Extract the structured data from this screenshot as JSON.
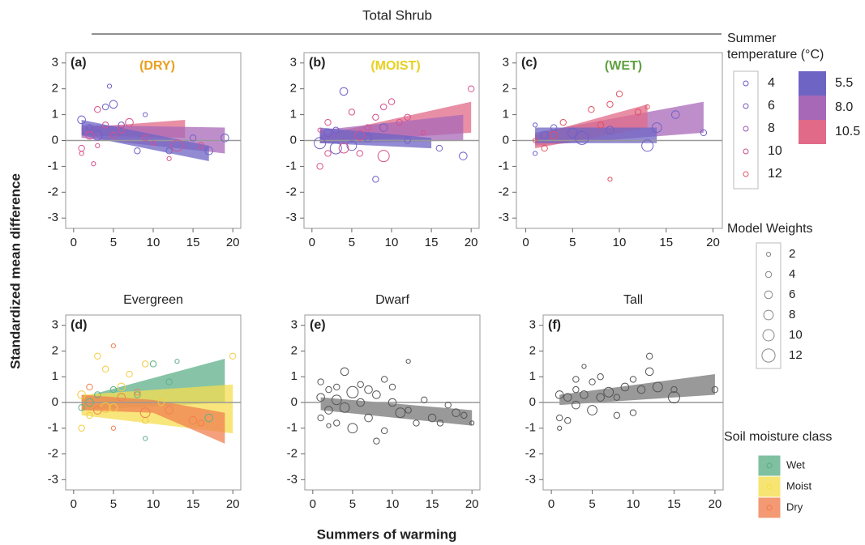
{
  "figure": {
    "title": "Total Shrub",
    "xlabel": "Summers of warming",
    "ylabel": "Standardized mean difference"
  },
  "legends": {
    "temperature": {
      "title": "Summer temperature (°C)",
      "points": [
        {
          "label": "4",
          "color": "#6a5acd"
        },
        {
          "label": "6",
          "color": "#7d58c2"
        },
        {
          "label": "8",
          "color": "#a055b5"
        },
        {
          "label": "10",
          "color": "#c9508d"
        },
        {
          "label": "12",
          "color": "#e05560"
        }
      ],
      "bands": [
        {
          "label": "5.5",
          "color": "#6e64c4"
        },
        {
          "label": "8.0",
          "color": "#a868b8"
        },
        {
          "label": "10.5",
          "color": "#e06a88"
        }
      ]
    },
    "weights": {
      "title": "Model Weights",
      "sizes": [
        2,
        4,
        6,
        8,
        10,
        12
      ],
      "color": "#888"
    },
    "soil": {
      "title": "Soil moisture class",
      "items": [
        {
          "label": "Wet",
          "color": "#5fb08a"
        },
        {
          "label": "Moist",
          "color": "#f5de50"
        },
        {
          "label": "Dry",
          "color": "#f08050"
        }
      ]
    }
  },
  "chart_data": [
    {
      "type": "scatter",
      "panel_label": "(a)",
      "title": "(DRY)",
      "title_color": "#e8a020",
      "xlim": [
        -1,
        21
      ],
      "ylim": [
        -3.4,
        3.4
      ],
      "xticks": [
        0,
        5,
        10,
        15,
        20
      ],
      "yticks": [
        -3,
        -2,
        -1,
        0,
        1,
        2,
        3
      ],
      "reference_line": 0,
      "bands": [
        {
          "color": "#e06a88",
          "x": [
            1,
            14
          ],
          "lower": [
            0.2,
            0.1
          ],
          "upper": [
            0.5,
            0.8
          ]
        },
        {
          "color": "#a868b8",
          "x": [
            1,
            19
          ],
          "lower": [
            0.1,
            -0.5
          ],
          "upper": [
            0.6,
            0.5
          ]
        },
        {
          "color": "#6e64c4",
          "x": [
            1,
            17
          ],
          "lower": [
            0.2,
            -0.8
          ],
          "upper": [
            0.8,
            -0.2
          ]
        }
      ],
      "series": [
        {
          "color": "#7060c8",
          "x": [
            1,
            2,
            4,
            4.5,
            5,
            6,
            8,
            9,
            12,
            17,
            19,
            15,
            3
          ],
          "y": [
            0.8,
            0.5,
            1.3,
            2.1,
            1.4,
            0.6,
            -0.4,
            1.0,
            -0.4,
            -0.4,
            0.1,
            0.1,
            0.2
          ],
          "size": [
            6,
            4,
            4,
            2,
            6,
            4,
            4,
            2,
            4,
            6,
            6,
            4,
            8
          ]
        },
        {
          "color": "#d8508c",
          "x": [
            1,
            1,
            2,
            3,
            3,
            4,
            5,
            6,
            7,
            9,
            10,
            12,
            13,
            16,
            2.5
          ],
          "y": [
            -0.3,
            -0.5,
            0.2,
            1.2,
            -0.2,
            0.6,
            0.2,
            0.4,
            0.7,
            0.1,
            -0.1,
            -0.7,
            -0.2,
            -0.2,
            -0.9
          ],
          "size": [
            4,
            2,
            6,
            4,
            2,
            4,
            4,
            4,
            6,
            4,
            2,
            2,
            10,
            4,
            2
          ]
        }
      ]
    },
    {
      "type": "scatter",
      "panel_label": "(b)",
      "title": "(MOIST)",
      "title_color": "#e8d020",
      "xlim": [
        -1,
        21
      ],
      "ylim": [
        -3.4,
        3.4
      ],
      "xticks": [
        0,
        5,
        10,
        15,
        20
      ],
      "yticks": [
        -3,
        -2,
        -1,
        0,
        1,
        2,
        3
      ],
      "reference_line": 0,
      "bands": [
        {
          "color": "#e06a88",
          "x": [
            1,
            20
          ],
          "lower": [
            -0.1,
            0.3
          ],
          "upper": [
            0.2,
            1.5
          ]
        },
        {
          "color": "#a868b8",
          "x": [
            1,
            19
          ],
          "lower": [
            -0.1,
            0.0
          ],
          "upper": [
            0.4,
            1.0
          ]
        },
        {
          "color": "#6e64c4",
          "x": [
            1,
            15
          ],
          "lower": [
            -0.1,
            -0.3
          ],
          "upper": [
            0.5,
            0.1
          ]
        }
      ],
      "series": [
        {
          "color": "#7060c8",
          "x": [
            1,
            2,
            3,
            4,
            5,
            8,
            9,
            12,
            16,
            19,
            7,
            3
          ],
          "y": [
            -0.1,
            0.3,
            0.4,
            1.9,
            -0.2,
            -1.5,
            0.5,
            0.0,
            -0.3,
            -0.6,
            0.1,
            -0.3
          ],
          "size": [
            10,
            6,
            4,
            6,
            8,
            4,
            6,
            4,
            4,
            6,
            6,
            10
          ]
        },
        {
          "color": "#d8508c",
          "x": [
            1,
            1,
            2,
            2,
            4,
            5,
            6,
            7,
            8,
            9,
            9,
            10,
            12,
            14,
            20,
            6,
            11
          ],
          "y": [
            -1.0,
            0.4,
            -0.5,
            0.7,
            -0.3,
            1.1,
            0.2,
            0.5,
            0.9,
            -0.6,
            1.3,
            1.5,
            0.9,
            0.3,
            2.0,
            -0.5,
            0.7
          ],
          "size": [
            4,
            2,
            4,
            4,
            8,
            4,
            8,
            4,
            4,
            10,
            4,
            4,
            4,
            2,
            4,
            4,
            4
          ]
        }
      ]
    },
    {
      "type": "scatter",
      "panel_label": "(c)",
      "title": "(WET)",
      "title_color": "#60a040",
      "xlim": [
        -1,
        21
      ],
      "ylim": [
        -3.4,
        3.4
      ],
      "xticks": [
        0,
        5,
        10,
        15,
        20
      ],
      "yticks": [
        -3,
        -2,
        -1,
        0,
        1,
        2,
        3
      ],
      "reference_line": 0,
      "bands": [
        {
          "color": "#a868b8",
          "x": [
            1,
            19
          ],
          "lower": [
            -0.2,
            0.3
          ],
          "upper": [
            0.3,
            1.5
          ]
        },
        {
          "color": "#e06a88",
          "x": [
            1,
            13
          ],
          "lower": [
            -0.3,
            0.5
          ],
          "upper": [
            0.2,
            1.4
          ]
        },
        {
          "color": "#6e64c4",
          "x": [
            1,
            14
          ],
          "lower": [
            -0.1,
            -0.1
          ],
          "upper": [
            0.5,
            0.5
          ]
        }
      ],
      "series": [
        {
          "color": "#7060c8",
          "x": [
            1,
            1,
            2,
            3,
            5,
            6,
            9,
            13,
            14,
            16,
            19
          ],
          "y": [
            0.6,
            -0.5,
            0.2,
            0.5,
            0.3,
            0.1,
            0.4,
            -0.2,
            0.5,
            1.0,
            0.3
          ],
          "size": [
            2,
            2,
            6,
            4,
            8,
            12,
            6,
            10,
            8,
            6,
            4
          ]
        },
        {
          "color": "#e05060",
          "x": [
            1,
            2,
            3,
            4,
            7,
            9,
            9,
            10,
            12,
            13,
            8
          ],
          "y": [
            0.0,
            -0.3,
            0.2,
            0.7,
            1.2,
            -1.5,
            1.4,
            1.8,
            1.1,
            1.3,
            0.6
          ],
          "size": [
            2,
            4,
            6,
            4,
            4,
            2,
            4,
            4,
            4,
            2,
            4
          ]
        }
      ]
    },
    {
      "type": "scatter",
      "panel_label": "(d)",
      "title": "Evergreen",
      "xlim": [
        -1,
        21
      ],
      "ylim": [
        -3.4,
        3.4
      ],
      "xticks": [
        0,
        5,
        10,
        15,
        20
      ],
      "yticks": [
        -3,
        -2,
        -1,
        0,
        1,
        2,
        3
      ],
      "reference_line": 0,
      "bands": [
        {
          "color": "#5fb08a",
          "x": [
            1,
            19
          ],
          "lower": [
            -0.3,
            0.0
          ],
          "upper": [
            0.2,
            1.7
          ]
        },
        {
          "color": "#f5de50",
          "x": [
            1,
            20
          ],
          "lower": [
            -0.5,
            -1.2
          ],
          "upper": [
            0.3,
            0.7
          ]
        },
        {
          "color": "#f08050",
          "x": [
            1,
            10,
            19
          ],
          "lower": [
            -0.3,
            -0.4,
            -1.6
          ],
          "upper": [
            0.3,
            0.1,
            -0.4
          ]
        }
      ],
      "series": [
        {
          "color": "#5fb08a",
          "x": [
            1,
            2,
            3,
            5,
            8,
            9,
            10,
            12,
            13,
            17
          ],
          "y": [
            -0.2,
            0.0,
            0.3,
            0.5,
            0.3,
            -1.4,
            1.5,
            0.8,
            1.6,
            -0.6
          ],
          "size": [
            4,
            6,
            4,
            4,
            4,
            2,
            4,
            4,
            2,
            6
          ]
        },
        {
          "color": "#f2cc40",
          "x": [
            1,
            1,
            2,
            3,
            4,
            4,
            6,
            7,
            9,
            9,
            11,
            20,
            5
          ],
          "y": [
            -1.0,
            0.3,
            -0.5,
            1.8,
            1.3,
            -0.2,
            0.6,
            1.1,
            -0.7,
            1.5,
            0.0,
            1.8,
            -0.2
          ],
          "size": [
            4,
            6,
            4,
            4,
            4,
            8,
            6,
            4,
            4,
            4,
            4,
            4,
            6
          ]
        },
        {
          "color": "#f08050",
          "x": [
            2,
            3,
            5,
            5,
            6,
            8,
            9,
            12,
            15,
            16
          ],
          "y": [
            0.6,
            -0.3,
            2.2,
            -1.0,
            0.2,
            0.4,
            -0.4,
            -0.3,
            -0.7,
            -0.8
          ],
          "size": [
            4,
            6,
            2,
            2,
            6,
            4,
            8,
            6,
            6,
            4
          ]
        }
      ]
    },
    {
      "type": "scatter",
      "panel_label": "(e)",
      "title": "Dwarf",
      "xlim": [
        -1,
        21
      ],
      "ylim": [
        -3.4,
        3.4
      ],
      "xticks": [
        0,
        5,
        10,
        15,
        20
      ],
      "yticks": [
        -3,
        -2,
        -1,
        0,
        1,
        2,
        3
      ],
      "reference_line": 0,
      "bands": [
        {
          "color": "#777777",
          "x": [
            1,
            20
          ],
          "lower": [
            -0.3,
            -0.9
          ],
          "upper": [
            0.2,
            -0.3
          ]
        }
      ],
      "series": [
        {
          "color": "#555555",
          "x": [
            1,
            1,
            1,
            2,
            2,
            3,
            3,
            4,
            4,
            5,
            5,
            6,
            6,
            7,
            8,
            8,
            9,
            10,
            10,
            11,
            12,
            12,
            13,
            14,
            15,
            16,
            17,
            18,
            19,
            20,
            9,
            7,
            3,
            2
          ],
          "y": [
            0.8,
            -0.6,
            0.2,
            -0.3,
            0.5,
            0.1,
            -0.8,
            1.2,
            -0.2,
            0.4,
            -1.0,
            0.0,
            0.7,
            -0.6,
            0.3,
            -1.5,
            -1.1,
            0.0,
            0.6,
            -0.4,
            1.6,
            -0.3,
            -0.8,
            0.1,
            -0.6,
            -0.8,
            -0.1,
            -0.4,
            -0.5,
            -0.8,
            0.9,
            0.5,
            0.6,
            -0.9
          ],
          "size": [
            4,
            4,
            6,
            6,
            4,
            8,
            4,
            6,
            8,
            10,
            8,
            6,
            4,
            6,
            6,
            4,
            4,
            6,
            4,
            8,
            2,
            4,
            4,
            4,
            6,
            4,
            4,
            6,
            4,
            2,
            4,
            6,
            4,
            2
          ]
        }
      ]
    },
    {
      "type": "scatter",
      "panel_label": "(f)",
      "title": "Tall",
      "xlim": [
        -1,
        21
      ],
      "ylim": [
        -3.4,
        3.4
      ],
      "xticks": [
        0,
        5,
        10,
        15,
        20
      ],
      "yticks": [
        -3,
        -2,
        -1,
        0,
        1,
        2,
        3
      ],
      "reference_line": 0,
      "bands": [
        {
          "color": "#777777",
          "x": [
            1,
            20
          ],
          "lower": [
            -0.1,
            0.3
          ],
          "upper": [
            0.3,
            1.1
          ]
        }
      ],
      "series": [
        {
          "color": "#555555",
          "x": [
            1,
            1,
            1,
            2,
            2,
            3,
            3,
            4,
            4,
            5,
            5,
            6,
            6,
            7,
            8,
            9,
            10,
            10,
            11,
            12,
            12,
            13,
            15,
            15,
            20,
            8,
            3
          ],
          "y": [
            -0.6,
            0.3,
            -1.0,
            0.2,
            -0.7,
            0.5,
            -0.1,
            1.4,
            0.3,
            0.8,
            -0.3,
            0.2,
            1.0,
            0.4,
            -0.5,
            0.6,
            -0.4,
            0.9,
            0.5,
            1.8,
            1.2,
            0.6,
            0.2,
            0.5,
            0.5,
            0.2,
            0.9
          ],
          "size": [
            4,
            6,
            2,
            6,
            4,
            4,
            6,
            2,
            6,
            4,
            8,
            6,
            4,
            8,
            4,
            6,
            4,
            4,
            6,
            4,
            6,
            8,
            10,
            4,
            4,
            4,
            4
          ]
        }
      ]
    }
  ]
}
